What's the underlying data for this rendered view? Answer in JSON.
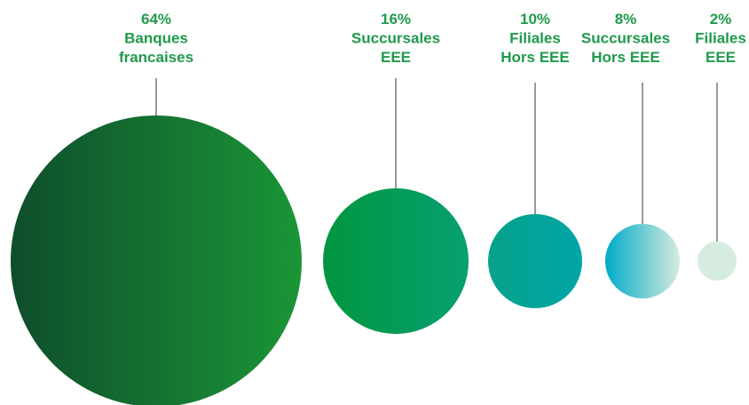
{
  "chart_data": {
    "type": "bubble",
    "label_color": "#1f9a4b",
    "items": [
      {
        "percent": "64%",
        "lines": [
          "Banques",
          "francaises"
        ],
        "value": 64,
        "gradient": [
          "#0f4d2c",
          "#1a9636"
        ]
      },
      {
        "percent": "16%",
        "lines": [
          "Succursales",
          "EEE"
        ],
        "value": 16,
        "gradient": [
          "#02963f",
          "#06a072"
        ]
      },
      {
        "percent": "10%",
        "lines": [
          "Filiales",
          "Hors EEE"
        ],
        "value": 10,
        "gradient": [
          "#07a28b",
          "#00a5a6"
        ]
      },
      {
        "percent": "8%",
        "lines": [
          "Succursales",
          "Hors EEE"
        ],
        "value": 8,
        "gradient": [
          "#00abc8",
          "#d7ebde"
        ]
      },
      {
        "percent": "2%",
        "lines": [
          "Filiales",
          "EEE"
        ],
        "value": 2,
        "gradient": [
          "#d6ece0",
          "#d6ece0"
        ]
      }
    ]
  }
}
